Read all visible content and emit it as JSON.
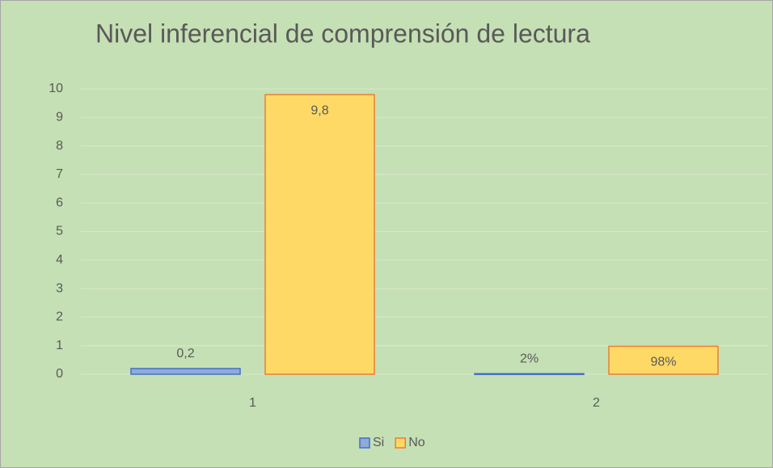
{
  "chart_data": {
    "type": "bar",
    "title": "Nivel inferencial de comprensión de lectura",
    "categories": [
      "1",
      "2"
    ],
    "series": [
      {
        "name": "Si",
        "color": "#8faadc",
        "values": [
          0.2,
          0.02
        ],
        "value_labels": [
          "0,2",
          "2%"
        ]
      },
      {
        "name": "No",
        "color": "#ffd966",
        "values": [
          9.8,
          0.98
        ],
        "value_labels": [
          "9,8",
          "98%"
        ]
      }
    ],
    "ylim": [
      0,
      10
    ],
    "yticks": [
      0,
      1,
      2,
      3,
      4,
      5,
      6,
      7,
      8,
      9,
      10
    ],
    "grid": true,
    "legend": "bottom"
  }
}
